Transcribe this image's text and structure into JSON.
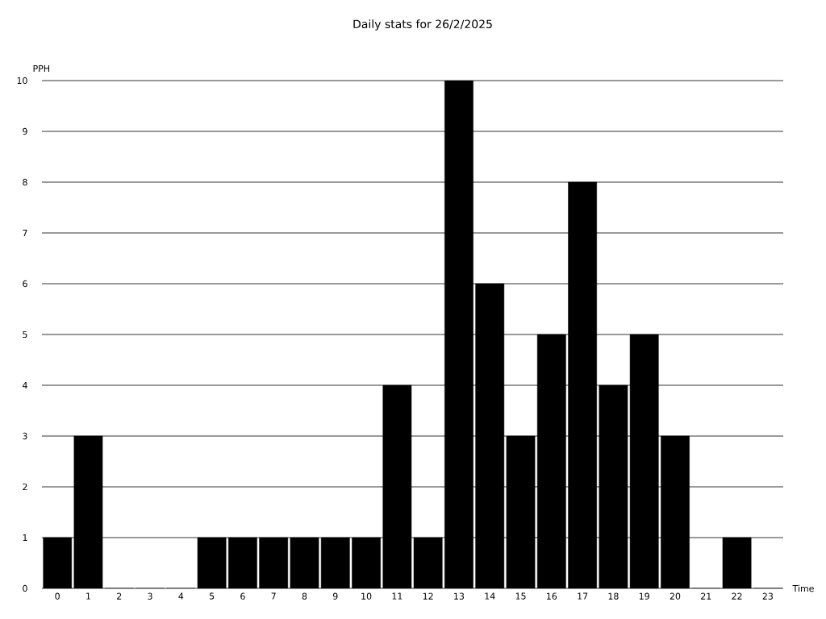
{
  "chart_data": {
    "type": "bar",
    "title": "Daily stats for 26/2/2025",
    "xlabel": "Time",
    "ylabel": "PPH",
    "categories": [
      "0",
      "1",
      "2",
      "3",
      "4",
      "5",
      "6",
      "7",
      "8",
      "9",
      "10",
      "11",
      "12",
      "13",
      "14",
      "15",
      "16",
      "17",
      "18",
      "19",
      "20",
      "21",
      "22",
      "23"
    ],
    "values": [
      1,
      3,
      0,
      0,
      0,
      1,
      1,
      1,
      1,
      1,
      1,
      4,
      1,
      10,
      6,
      3,
      5,
      8,
      4,
      5,
      3,
      0,
      1,
      0
    ],
    "color": "#000000",
    "ylim": [
      0,
      10
    ],
    "yticks": [
      0,
      1,
      2,
      3,
      4,
      5,
      6,
      7,
      8,
      9,
      10
    ],
    "grid": "y"
  }
}
